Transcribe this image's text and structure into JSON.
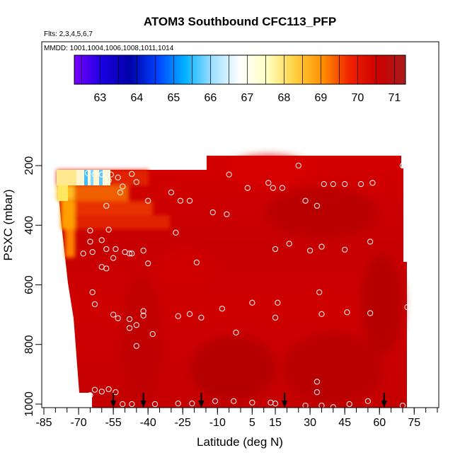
{
  "chart_data": {
    "type": "heatmap",
    "title": "ATOM3 Southbound CFC113_PFP",
    "subtitle_flights": "Flts: 2,3,4,5,6,7",
    "subtitle_dates": "MMDD: 1001,1004,1006,1008,1011,1014",
    "xlabel": "Latitude (deg N)",
    "ylabel": "PSXC (mbar)",
    "xlim": [
      -85,
      85
    ],
    "ylim": [
      1000,
      0
    ],
    "x_ticks": [
      -85,
      -70,
      -55,
      -40,
      -25,
      -10,
      5,
      15,
      30,
      45,
      60,
      75
    ],
    "y_ticks": [
      200,
      400,
      600,
      800,
      1000
    ],
    "colorbar": {
      "range": [
        62.3,
        71.3
      ],
      "ticks": [
        63,
        64,
        65,
        66,
        67,
        68,
        69,
        70,
        71
      ],
      "colors": [
        "#7a00ff",
        "#1a00e0",
        "#0000a8",
        "#0040ff",
        "#00b0ff",
        "#9fe0ff",
        "#ffffff",
        "#ffffc0",
        "#ffd040",
        "#ff9000",
        "#f02000",
        "#cc0000",
        "#a81c1c"
      ]
    },
    "arrows_latitude": [
      -55,
      -42,
      -17,
      19,
      62
    ],
    "samples": [
      [
        -66,
        225
      ],
      [
        -63,
        230
      ],
      [
        -60,
        230
      ],
      [
        -58,
        230
      ],
      [
        -56,
        230
      ],
      [
        -57,
        250
      ],
      [
        -53,
        240
      ],
      [
        -47,
        228
      ],
      [
        -51,
        270
      ],
      [
        -45,
        255
      ],
      [
        -52,
        290
      ],
      [
        -30,
        290
      ],
      [
        -58,
        335
      ],
      [
        -40,
        318
      ],
      [
        -26,
        318
      ],
      [
        -22,
        318
      ],
      [
        -28,
        425
      ],
      [
        -65,
        418
      ],
      [
        -57,
        415
      ],
      [
        -60,
        450
      ],
      [
        -65,
        455
      ],
      [
        -68,
        495
      ],
      [
        -64,
        490
      ],
      [
        -58,
        480
      ],
      [
        -54,
        480
      ],
      [
        -50,
        490
      ],
      [
        -48,
        495
      ],
      [
        -47,
        495
      ],
      [
        -42,
        485
      ],
      [
        -40,
        528
      ],
      [
        -60,
        540
      ],
      [
        -58,
        545
      ],
      [
        -55,
        510
      ],
      [
        -64,
        625
      ],
      [
        -63,
        665
      ],
      [
        -55,
        700
      ],
      [
        -53,
        712
      ],
      [
        -48,
        715
      ],
      [
        -42,
        688
      ],
      [
        -42,
        703
      ],
      [
        -45,
        735
      ],
      [
        -48,
        745
      ],
      [
        -38,
        765
      ],
      [
        -45,
        805
      ],
      [
        -27,
        705
      ],
      [
        -22,
        698
      ],
      [
        -17,
        710
      ],
      [
        -19,
        525
      ],
      [
        -16,
        200
      ],
      [
        -12,
        357
      ],
      [
        -6,
        363
      ],
      [
        -5,
        230
      ],
      [
        3,
        275
      ],
      [
        12,
        258
      ],
      [
        14,
        275
      ],
      [
        18,
        275
      ],
      [
        15,
        480
      ],
      [
        21,
        462
      ],
      [
        28,
        318
      ],
      [
        25,
        200
      ],
      [
        30,
        485
      ],
      [
        33,
        335
      ],
      [
        35,
        472
      ],
      [
        36,
        262
      ],
      [
        40,
        262
      ],
      [
        45,
        262
      ],
      [
        45,
        482
      ],
      [
        52,
        262
      ],
      [
        56,
        455
      ],
      [
        57,
        258
      ],
      [
        70,
        200
      ],
      [
        34,
        625
      ],
      [
        5,
        660
      ],
      [
        15,
        710
      ],
      [
        16,
        660
      ],
      [
        35,
        698
      ],
      [
        46,
        692
      ],
      [
        56,
        695
      ],
      [
        72,
        675
      ],
      [
        -8,
        680
      ],
      [
        -2,
        760
      ],
      [
        33,
        925
      ],
      [
        33,
        960
      ],
      [
        -63,
        952
      ],
      [
        -60,
        958
      ],
      [
        -57,
        950
      ],
      [
        -54,
        960
      ],
      [
        -51,
        1000
      ],
      [
        -47,
        1000
      ],
      [
        -37,
        1000
      ],
      [
        -27,
        998
      ],
      [
        -21,
        998
      ],
      [
        -11,
        990
      ],
      [
        -3,
        990
      ],
      [
        5,
        995
      ],
      [
        13,
        995
      ],
      [
        15,
        998
      ],
      [
        28,
        1005
      ],
      [
        35,
        1005
      ],
      [
        40,
        1010
      ],
      [
        47,
        1000
      ],
      [
        55,
        990
      ],
      [
        70,
        1005
      ],
      [
        -65,
        970
      ]
    ]
  }
}
